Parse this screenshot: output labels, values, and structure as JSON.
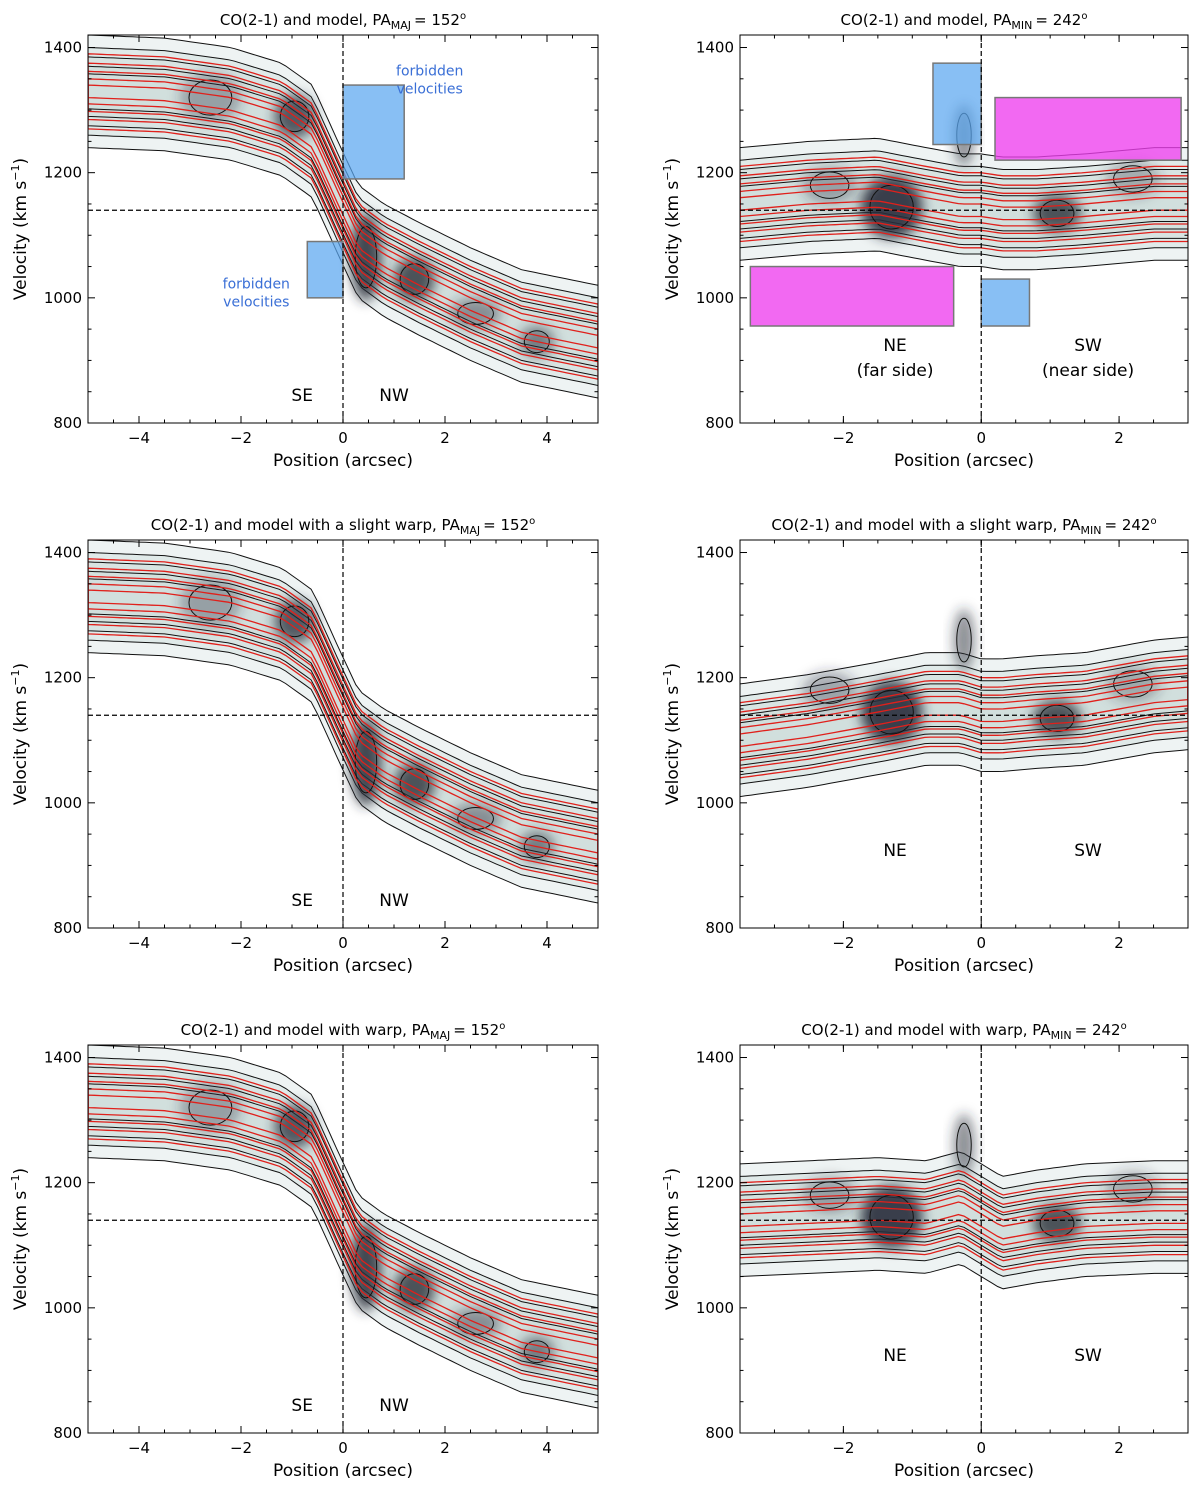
{
  "colors": {
    "data_contour": "#111111",
    "model_contour": "#e0201b",
    "forbidden_box": "#5aa6f0",
    "magenta_box": "#ee3fee",
    "box_edge": "#777777",
    "shade_dark": "#2a2f3a",
    "shade_light": "#cfdedc",
    "annotation_text": "#3a6fd6"
  },
  "chart_data": [
    {
      "type": "contour",
      "panel": "top-left",
      "title_main": "CO(2-1) and model, PA",
      "title_sub": "MAJ",
      "title_value": "= 152",
      "title_deg": "o",
      "xlabel": "Position (arcsec)",
      "ylabel_main": "Velocity (km s",
      "ylabel_sup": "−1",
      "ylabel_close": ")",
      "xlim": [
        -5,
        5
      ],
      "ylim": [
        800,
        1420
      ],
      "xticks": [
        -4,
        -2,
        0,
        2,
        4
      ],
      "xtick_labels": [
        "−4",
        "−2",
        "0",
        "2",
        "4"
      ],
      "yticks": [
        800,
        1000,
        1200,
        1400
      ],
      "ytick_labels": [
        "800",
        "1000",
        "1200",
        "1400"
      ],
      "systemic_velocity": 1140,
      "center_position": 0,
      "side_labels": [
        {
          "text": "SE",
          "x": -0.8,
          "y": 835
        },
        {
          "text": "NW",
          "x": 1.0,
          "y": 835
        }
      ],
      "annotations": [
        {
          "lines": [
            "forbidden",
            "velocities"
          ],
          "x": 1.7,
          "y": 1355
        },
        {
          "lines": [
            "forbidden",
            "velocities"
          ],
          "x": -1.7,
          "y": 1015
        }
      ],
      "boxes": [
        {
          "x0": 0.0,
          "x1": 1.2,
          "y0": 1190,
          "y1": 1340,
          "color": "blue"
        },
        {
          "x0": -0.7,
          "x1": 0.0,
          "y0": 1000,
          "y1": 1090,
          "color": "blue"
        }
      ],
      "curve": {
        "x": [
          -5,
          -3.5,
          -2.2,
          -1.2,
          -0.6,
          -0.1,
          0.3,
          0.8,
          1.5,
          2.5,
          3.5,
          5
        ],
        "v": [
          1330,
          1325,
          1310,
          1285,
          1250,
          1160,
          1090,
          1060,
          1030,
          990,
          955,
          930
        ]
      },
      "blobs": [
        {
          "x": -0.95,
          "v": 1290,
          "w": 0.4,
          "h": 35,
          "a": 0.75
        },
        {
          "x": -2.6,
          "v": 1320,
          "w": 0.6,
          "h": 40,
          "a": 0.35
        },
        {
          "x": 0.45,
          "v": 1065,
          "w": 0.3,
          "h": 70,
          "a": 0.85
        },
        {
          "x": 1.4,
          "v": 1030,
          "w": 0.4,
          "h": 35,
          "a": 0.8
        },
        {
          "x": 2.6,
          "v": 975,
          "w": 0.5,
          "h": 25,
          "a": 0.45
        },
        {
          "x": 3.8,
          "v": 930,
          "w": 0.35,
          "h": 25,
          "a": 0.55
        }
      ]
    },
    {
      "type": "contour",
      "panel": "top-right",
      "title_main": "CO(2-1) and model, PA",
      "title_sub": "MIN",
      "title_value": "= 242",
      "title_deg": "o",
      "xlabel": "Position (arcsec)",
      "ylabel_main": "Velocity (km s",
      "ylabel_sup": "−1",
      "ylabel_close": ")",
      "xlim": [
        -3.5,
        3
      ],
      "ylim": [
        800,
        1420
      ],
      "xticks": [
        -2,
        0,
        2
      ],
      "xtick_labels": [
        "−2",
        "0",
        "2"
      ],
      "yticks": [
        800,
        1000,
        1200,
        1400
      ],
      "ytick_labels": [
        "800",
        "1000",
        "1200",
        "1400"
      ],
      "systemic_velocity": 1140,
      "center_position": 0,
      "side_labels": [
        {
          "text": "NE",
          "x": -1.25,
          "y": 915
        },
        {
          "text": "(far side)",
          "x": -1.25,
          "y": 875
        },
        {
          "text": "SW",
          "x": 1.55,
          "y": 915
        },
        {
          "text": "(near side)",
          "x": 1.55,
          "y": 875
        }
      ],
      "annotations": [],
      "boxes": [
        {
          "x0": -0.7,
          "x1": 0.0,
          "y0": 1245,
          "y1": 1375,
          "color": "blue"
        },
        {
          "x0": 0.0,
          "x1": 0.7,
          "y0": 955,
          "y1": 1030,
          "color": "blue"
        },
        {
          "x0": 0.2,
          "x1": 2.9,
          "y0": 1220,
          "y1": 1320,
          "color": "magenta"
        },
        {
          "x0": -3.35,
          "x1": -0.4,
          "y0": 955,
          "y1": 1050,
          "color": "magenta"
        }
      ],
      "curve": {
        "x": [
          -3.5,
          -2.5,
          -1.5,
          -0.8,
          -0.3,
          0.0,
          0.3,
          0.8,
          1.5,
          2.5,
          3.0
        ],
        "v": [
          1150,
          1160,
          1165,
          1150,
          1140,
          1140,
          1135,
          1135,
          1140,
          1150,
          1150
        ]
      },
      "blobs": [
        {
          "x": -1.3,
          "v": 1145,
          "w": 0.45,
          "h": 50,
          "a": 0.9
        },
        {
          "x": -2.2,
          "v": 1180,
          "w": 0.4,
          "h": 30,
          "a": 0.35
        },
        {
          "x": -0.25,
          "v": 1260,
          "w": 0.15,
          "h": 50,
          "a": 0.55
        },
        {
          "x": 1.1,
          "v": 1135,
          "w": 0.35,
          "h": 30,
          "a": 0.8
        },
        {
          "x": 2.2,
          "v": 1190,
          "w": 0.4,
          "h": 30,
          "a": 0.3
        }
      ]
    },
    {
      "type": "contour",
      "panel": "middle-left",
      "title_main": "CO(2-1) and model with a slight warp, PA",
      "title_sub": "MAJ",
      "title_value": "= 152",
      "title_deg": "o",
      "xlabel": "Position (arcsec)",
      "ylabel_main": "Velocity (km s",
      "ylabel_sup": "−1",
      "ylabel_close": ")",
      "xlim": [
        -5,
        5
      ],
      "ylim": [
        800,
        1420
      ],
      "xticks": [
        -4,
        -2,
        0,
        2,
        4
      ],
      "xtick_labels": [
        "−4",
        "−2",
        "0",
        "2",
        "4"
      ],
      "yticks": [
        800,
        1000,
        1200,
        1400
      ],
      "ytick_labels": [
        "800",
        "1000",
        "1200",
        "1400"
      ],
      "systemic_velocity": 1140,
      "center_position": 0,
      "side_labels": [
        {
          "text": "SE",
          "x": -0.8,
          "y": 835
        },
        {
          "text": "NW",
          "x": 1.0,
          "y": 835
        }
      ],
      "annotations": [],
      "boxes": [],
      "curve": {
        "x": [
          -5,
          -3.5,
          -2.2,
          -1.2,
          -0.6,
          -0.1,
          0.3,
          0.8,
          1.5,
          2.5,
          3.5,
          5
        ],
        "v": [
          1330,
          1325,
          1310,
          1285,
          1250,
          1160,
          1090,
          1060,
          1030,
          990,
          955,
          930
        ]
      },
      "blobs": [
        {
          "x": -0.95,
          "v": 1290,
          "w": 0.4,
          "h": 35,
          "a": 0.75
        },
        {
          "x": -2.6,
          "v": 1320,
          "w": 0.6,
          "h": 40,
          "a": 0.35
        },
        {
          "x": 0.45,
          "v": 1065,
          "w": 0.3,
          "h": 70,
          "a": 0.85
        },
        {
          "x": 1.4,
          "v": 1030,
          "w": 0.4,
          "h": 35,
          "a": 0.8
        },
        {
          "x": 2.6,
          "v": 975,
          "w": 0.5,
          "h": 25,
          "a": 0.45
        },
        {
          "x": 3.8,
          "v": 930,
          "w": 0.35,
          "h": 25,
          "a": 0.55
        }
      ]
    },
    {
      "type": "contour",
      "panel": "middle-right",
      "title_main": "CO(2-1) and model with a slight warp,  PA",
      "title_sub": "MIN",
      "title_value": "= 242",
      "title_deg": "o",
      "xlabel": "Position (arcsec)",
      "ylabel_main": "Velocity (km s",
      "ylabel_sup": "−1",
      "ylabel_close": ")",
      "xlim": [
        -3.5,
        3
      ],
      "ylim": [
        800,
        1420
      ],
      "xticks": [
        -2,
        0,
        2
      ],
      "xtick_labels": [
        "−2",
        "0",
        "2"
      ],
      "yticks": [
        800,
        1000,
        1200,
        1400
      ],
      "ytick_labels": [
        "800",
        "1000",
        "1200",
        "1400"
      ],
      "systemic_velocity": 1140,
      "center_position": 0,
      "side_labels": [
        {
          "text": "NE",
          "x": -1.25,
          "y": 915
        },
        {
          "text": "SW",
          "x": 1.55,
          "y": 915
        }
      ],
      "annotations": [],
      "boxes": [],
      "curve": {
        "x": [
          -3.5,
          -2.5,
          -1.5,
          -0.8,
          -0.3,
          0.0,
          0.3,
          0.8,
          1.5,
          2.5,
          3.0
        ],
        "v": [
          1100,
          1115,
          1135,
          1150,
          1150,
          1140,
          1140,
          1145,
          1150,
          1170,
          1175
        ]
      },
      "blobs": [
        {
          "x": -1.3,
          "v": 1145,
          "w": 0.45,
          "h": 50,
          "a": 0.9
        },
        {
          "x": -2.2,
          "v": 1180,
          "w": 0.4,
          "h": 30,
          "a": 0.35
        },
        {
          "x": -0.25,
          "v": 1260,
          "w": 0.15,
          "h": 50,
          "a": 0.55
        },
        {
          "x": 1.1,
          "v": 1135,
          "w": 0.35,
          "h": 30,
          "a": 0.8
        },
        {
          "x": 2.2,
          "v": 1190,
          "w": 0.4,
          "h": 30,
          "a": 0.3
        }
      ]
    },
    {
      "type": "contour",
      "panel": "bottom-left",
      "title_main": "CO(2-1) and model with warp, PA",
      "title_sub": "MAJ",
      "title_value": "= 152",
      "title_deg": "o",
      "xlabel": "Position (arcsec)",
      "ylabel_main": "Velocity (km s",
      "ylabel_sup": "−1",
      "ylabel_close": ")",
      "xlim": [
        -5,
        5
      ],
      "ylim": [
        800,
        1420
      ],
      "xticks": [
        -4,
        -2,
        0,
        2,
        4
      ],
      "xtick_labels": [
        "−4",
        "−2",
        "0",
        "2",
        "4"
      ],
      "yticks": [
        800,
        1000,
        1200,
        1400
      ],
      "ytick_labels": [
        "800",
        "1000",
        "1200",
        "1400"
      ],
      "systemic_velocity": 1140,
      "center_position": 0,
      "side_labels": [
        {
          "text": "SE",
          "x": -0.8,
          "y": 835
        },
        {
          "text": "NW",
          "x": 1.0,
          "y": 835
        }
      ],
      "annotations": [],
      "boxes": [],
      "curve": {
        "x": [
          -5,
          -3.5,
          -2.2,
          -1.2,
          -0.6,
          -0.1,
          0.3,
          0.8,
          1.5,
          2.5,
          3.5,
          5
        ],
        "v": [
          1330,
          1325,
          1310,
          1285,
          1250,
          1160,
          1090,
          1060,
          1030,
          990,
          955,
          930
        ]
      },
      "blobs": [
        {
          "x": -0.95,
          "v": 1290,
          "w": 0.4,
          "h": 35,
          "a": 0.75
        },
        {
          "x": -2.6,
          "v": 1320,
          "w": 0.6,
          "h": 40,
          "a": 0.35
        },
        {
          "x": 0.45,
          "v": 1065,
          "w": 0.3,
          "h": 70,
          "a": 0.85
        },
        {
          "x": 1.4,
          "v": 1030,
          "w": 0.4,
          "h": 35,
          "a": 0.8
        },
        {
          "x": 2.6,
          "v": 975,
          "w": 0.5,
          "h": 25,
          "a": 0.45
        },
        {
          "x": 3.8,
          "v": 930,
          "w": 0.35,
          "h": 25,
          "a": 0.55
        }
      ]
    },
    {
      "type": "contour",
      "panel": "bottom-right",
      "title_main": "CO(2-1) and model with warp, PA",
      "title_sub": "MIN",
      "title_value": "= 242",
      "title_deg": "o",
      "xlabel": "Position (arcsec)",
      "ylabel_main": "Velocity (km s",
      "ylabel_sup": "−1",
      "ylabel_close": ")",
      "xlim": [
        -3.5,
        3
      ],
      "ylim": [
        800,
        1420
      ],
      "xticks": [
        -2,
        0,
        2
      ],
      "xtick_labels": [
        "−2",
        "0",
        "2"
      ],
      "yticks": [
        800,
        1000,
        1200,
        1400
      ],
      "ytick_labels": [
        "800",
        "1000",
        "1200",
        "1400"
      ],
      "systemic_velocity": 1140,
      "center_position": 0,
      "side_labels": [
        {
          "text": "NE",
          "x": -1.25,
          "y": 915
        },
        {
          "text": "SW",
          "x": 1.55,
          "y": 915
        }
      ],
      "annotations": [],
      "boxes": [],
      "curve": {
        "x": [
          -3.5,
          -2.5,
          -1.5,
          -0.8,
          -0.3,
          0.0,
          0.3,
          0.8,
          1.5,
          2.5,
          3.0
        ],
        "v": [
          1140,
          1145,
          1150,
          1145,
          1160,
          1140,
          1120,
          1130,
          1140,
          1145,
          1145
        ]
      },
      "blobs": [
        {
          "x": -1.3,
          "v": 1145,
          "w": 0.45,
          "h": 50,
          "a": 0.9
        },
        {
          "x": -2.2,
          "v": 1180,
          "w": 0.4,
          "h": 30,
          "a": 0.35
        },
        {
          "x": -0.25,
          "v": 1260,
          "w": 0.15,
          "h": 50,
          "a": 0.55
        },
        {
          "x": 1.1,
          "v": 1135,
          "w": 0.35,
          "h": 30,
          "a": 0.8
        },
        {
          "x": 2.2,
          "v": 1190,
          "w": 0.4,
          "h": 30,
          "a": 0.3
        }
      ]
    }
  ]
}
